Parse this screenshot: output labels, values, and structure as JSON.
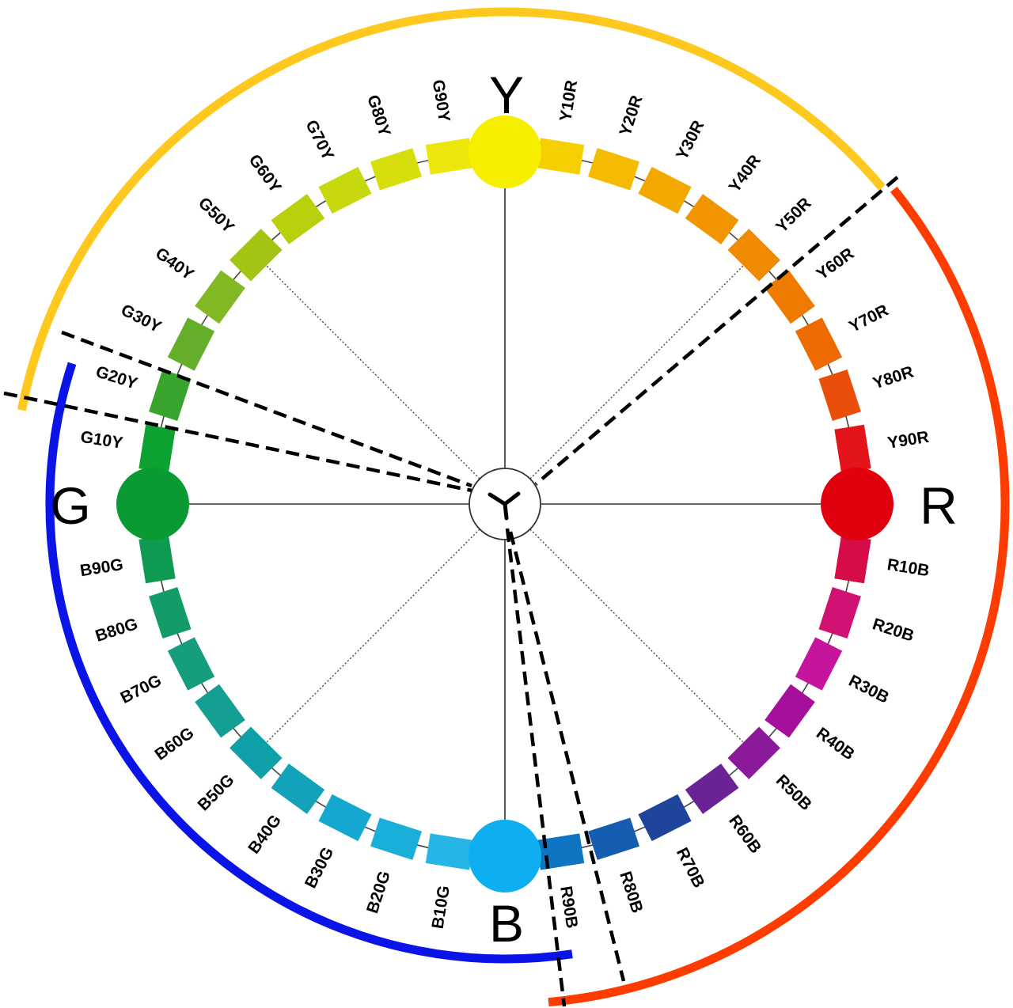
{
  "diagram": {
    "unique_hues": [
      {
        "label": "Y",
        "color": "#f7ef00"
      },
      {
        "label": "R",
        "color": "#e0000e"
      },
      {
        "label": "B",
        "color": "#0eaff0"
      },
      {
        "label": "G",
        "color": "#0a9a33"
      }
    ],
    "hue_patches": [
      {
        "label": "Y10R",
        "color": "#f5cf00"
      },
      {
        "label": "Y20R",
        "color": "#f5bb00"
      },
      {
        "label": "Y30R",
        "color": "#f3a800"
      },
      {
        "label": "Y40R",
        "color": "#f29400"
      },
      {
        "label": "Y50R",
        "color": "#f08a00"
      },
      {
        "label": "Y60R",
        "color": "#ee7a00"
      },
      {
        "label": "Y70R",
        "color": "#ec6a00"
      },
      {
        "label": "Y80R",
        "color": "#e94f0a"
      },
      {
        "label": "Y90R",
        "color": "#e3141a"
      },
      {
        "label": "R10B",
        "color": "#d60c48"
      },
      {
        "label": "R20B",
        "color": "#d21273"
      },
      {
        "label": "R30B",
        "color": "#c4159c"
      },
      {
        "label": "R40B",
        "color": "#a40f9c"
      },
      {
        "label": "R50B",
        "color": "#8a1a9a"
      },
      {
        "label": "R60B",
        "color": "#6a2394"
      },
      {
        "label": "R70B",
        "color": "#1e449c"
      },
      {
        "label": "R80B",
        "color": "#145db0"
      },
      {
        "label": "R90B",
        "color": "#0f74c2"
      },
      {
        "label": "B10G",
        "color": "#26b6e6"
      },
      {
        "label": "B20G",
        "color": "#1aafd8"
      },
      {
        "label": "B30G",
        "color": "#14a7cf"
      },
      {
        "label": "B40G",
        "color": "#12a3bb"
      },
      {
        "label": "B50G",
        "color": "#10a0aa"
      },
      {
        "label": "B60G",
        "color": "#139f91"
      },
      {
        "label": "B70G",
        "color": "#169d7e"
      },
      {
        "label": "B80G",
        "color": "#139b68"
      },
      {
        "label": "B90G",
        "color": "#0f9a52"
      },
      {
        "label": "G10Y",
        "color": "#0da232"
      },
      {
        "label": "G20Y",
        "color": "#3aa52e"
      },
      {
        "label": "G30Y",
        "color": "#64ae2a"
      },
      {
        "label": "G40Y",
        "color": "#82b823"
      },
      {
        "label": "G50Y",
        "color": "#a2c514"
      },
      {
        "label": "G60Y",
        "color": "#b8d10c"
      },
      {
        "label": "G70Y",
        "color": "#c8d80f"
      },
      {
        "label": "G80Y",
        "color": "#d6df0c"
      },
      {
        "label": "G90Y",
        "color": "#ede60a"
      }
    ],
    "outer_arcs": [
      {
        "name": "yellow-arc",
        "color": "#ffc81e"
      },
      {
        "name": "red-arc",
        "color": "#ff3c00"
      },
      {
        "name": "blue-arc",
        "color": "#0a14e6"
      }
    ]
  }
}
